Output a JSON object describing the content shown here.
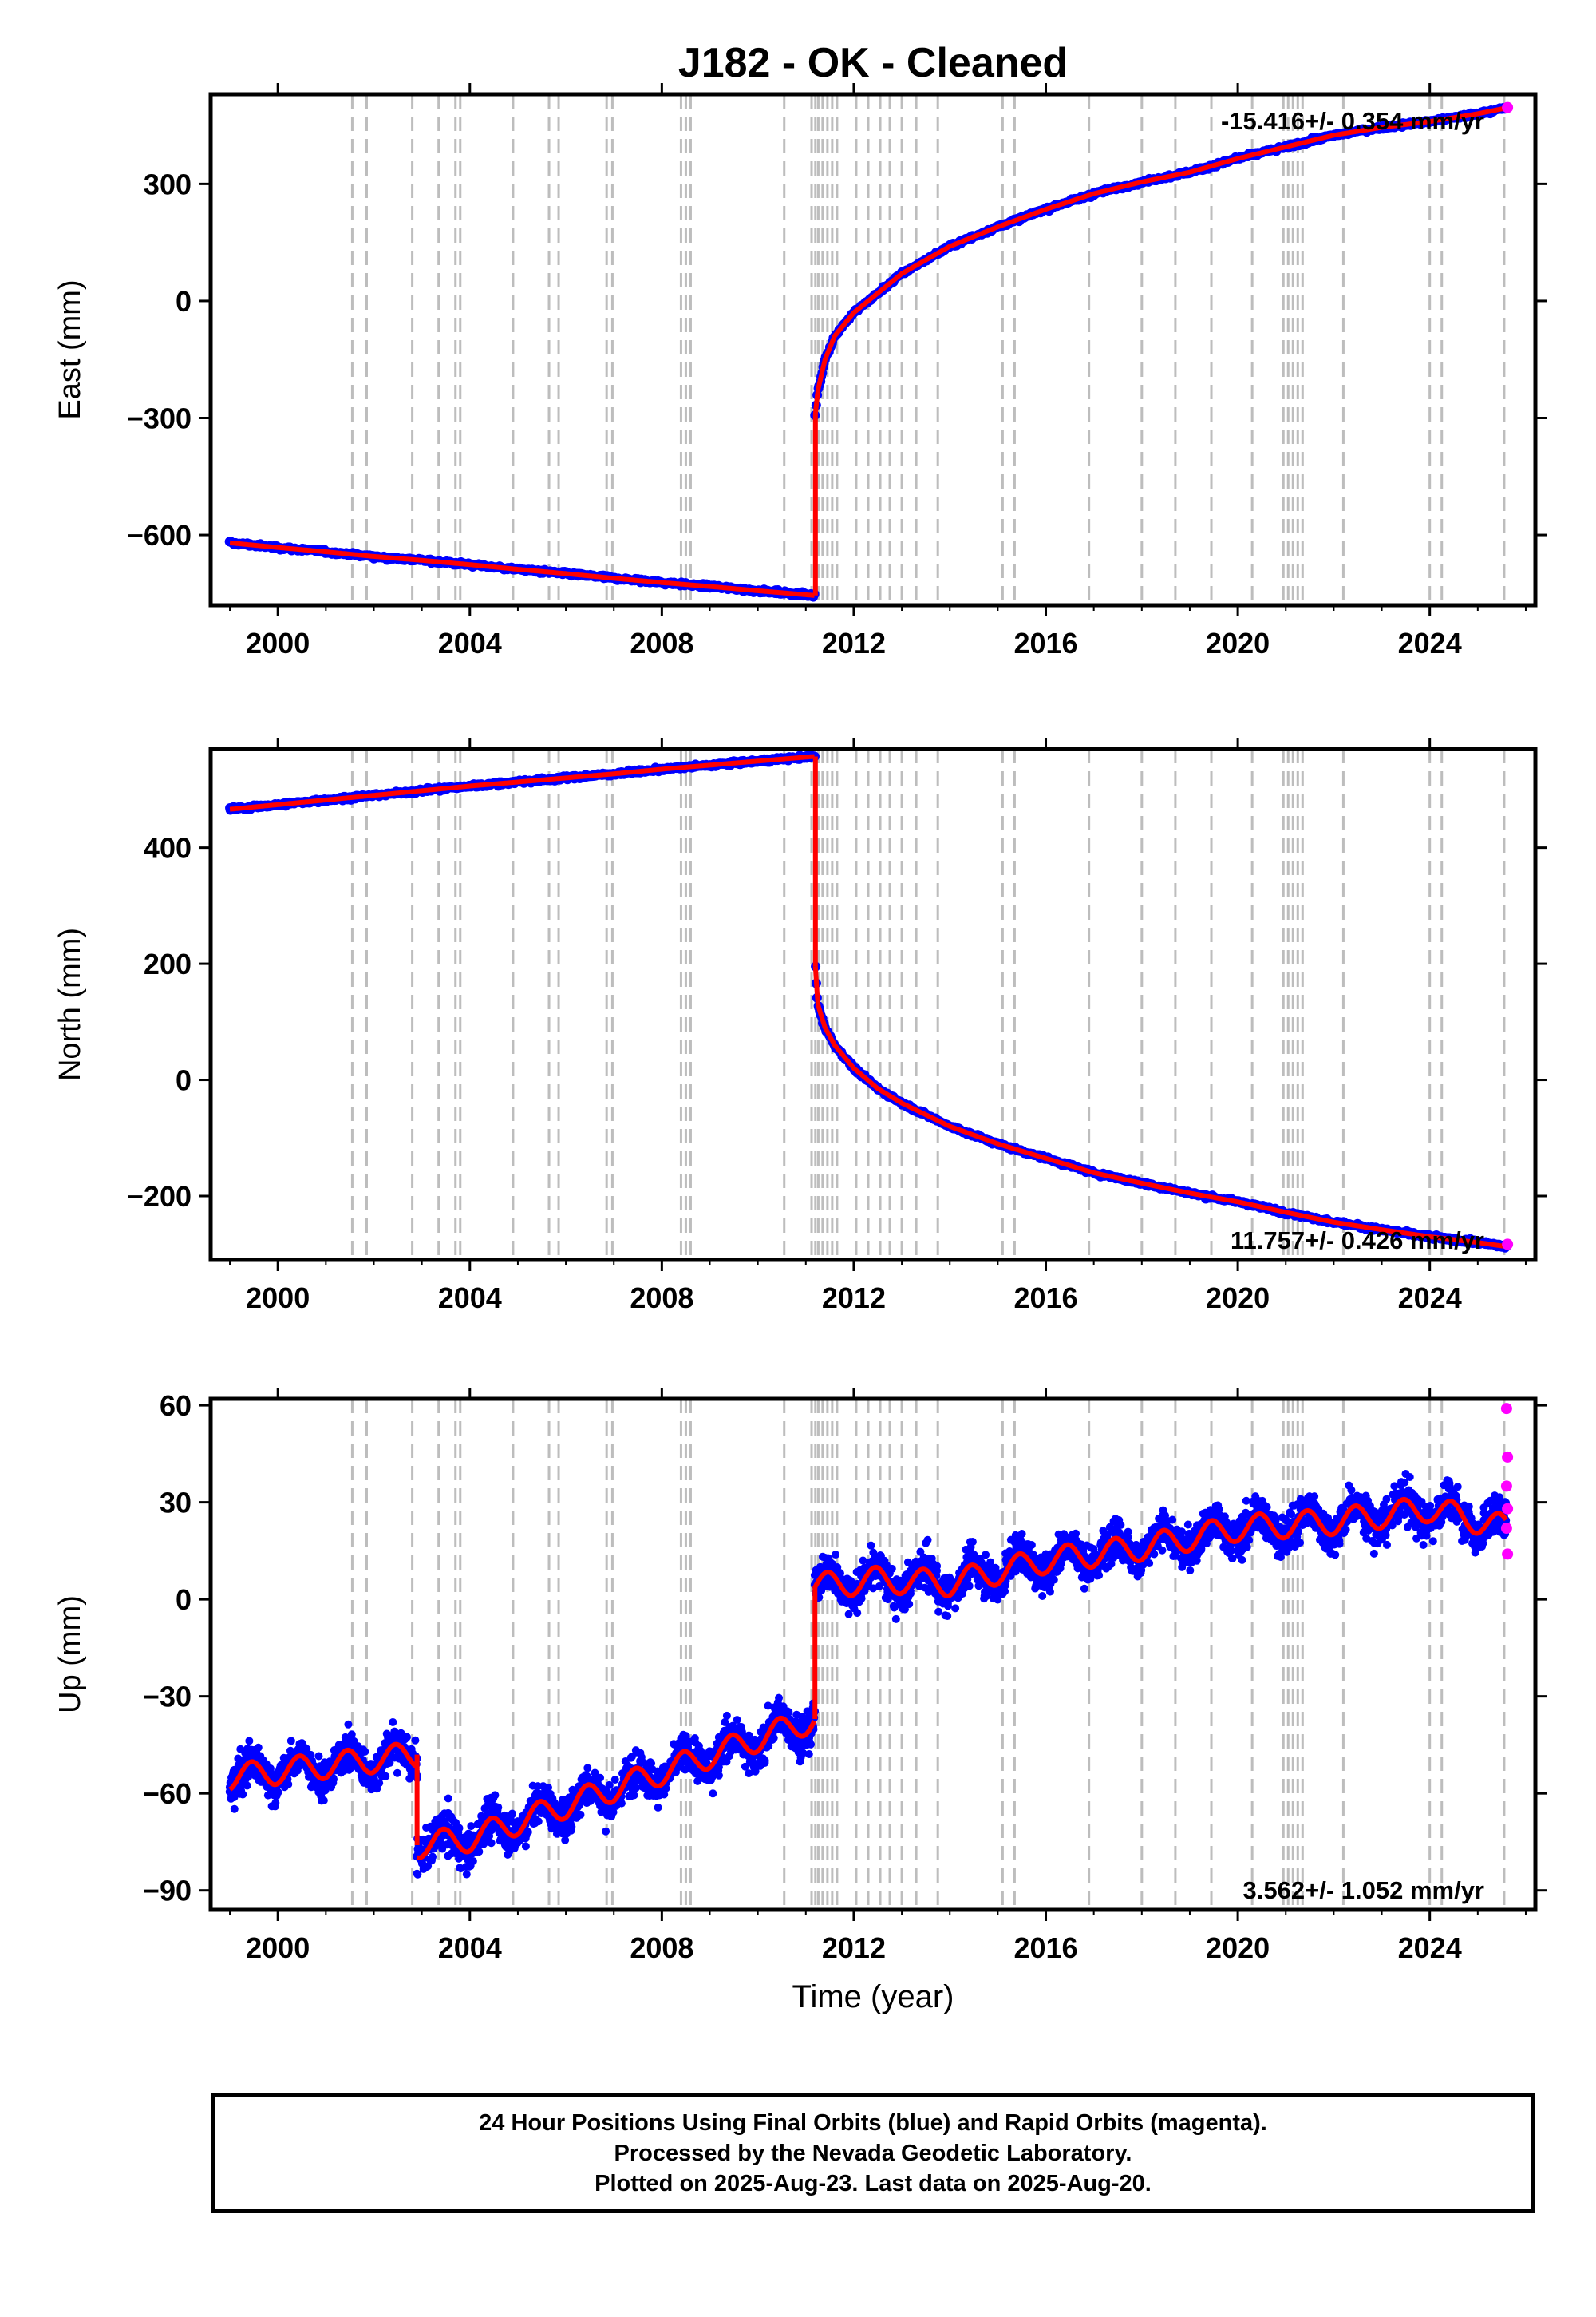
{
  "title": "J182  - OK - Cleaned",
  "xlabel": "Time (year)",
  "x_ticks": [
    2000,
    2004,
    2008,
    2012,
    2016,
    2020,
    2024
  ],
  "xlim": [
    1998.6,
    2026.2
  ],
  "colors": {
    "final_orbits": "#0000ff",
    "rapid_orbits": "#ff00ff",
    "model": "#ff0000",
    "event_lines": "#bdbdbd",
    "frame": "#000000"
  },
  "event_lines_years": [
    2001.55,
    2001.85,
    2002.8,
    2003.35,
    2003.7,
    2003.8,
    2004.9,
    2005.65,
    2005.85,
    2006.85,
    2006.97,
    2008.4,
    2008.5,
    2008.6,
    2010.55,
    2011.12,
    2011.2,
    2011.26,
    2011.35,
    2011.45,
    2011.55,
    2011.65,
    2012.05,
    2012.3,
    2012.55,
    2012.75,
    2013.0,
    2013.3,
    2013.75,
    2015.1,
    2015.35,
    2016.9,
    2018.0,
    2018.7,
    2019.45,
    2020.3,
    2020.95,
    2021.05,
    2021.15,
    2021.25,
    2021.35,
    2022.2,
    2024.0,
    2024.25,
    2025.55
  ],
  "footer": {
    "line1": "24 Hour Positions Using Final Orbits (blue) and Rapid Orbits (magenta).",
    "line2": "Processed by the Nevada Geodetic Laboratory.",
    "line3": "Plotted on 2025-Aug-23. Last data on 2025-Aug-20."
  },
  "chart_data": [
    {
      "type": "scatter",
      "component": "East",
      "ylabel": "East (mm)",
      "rate_label": "-15.416+/- 0.354 mm/yr",
      "rate_position": "top-right",
      "ylim": [
        -780,
        530
      ],
      "y_ticks": [
        -600,
        -300,
        0,
        300
      ],
      "offset_year": 2011.19,
      "series": [
        {
          "segment": "pre-offset",
          "x": [
            1999.0,
            2000.0,
            2001.0,
            2002.0,
            2003.0,
            2004.0,
            2005.0,
            2006.0,
            2007.0,
            2008.0,
            2009.0,
            2010.0,
            2011.18
          ],
          "y": [
            -620,
            -632,
            -643,
            -655,
            -665,
            -676,
            -688,
            -699,
            -711,
            -722,
            -732,
            -743,
            -755
          ]
        },
        {
          "segment": "post-offset",
          "x": [
            2011.2,
            2011.25,
            2011.4,
            2011.6,
            2012.0,
            2012.5,
            2013.0,
            2014.0,
            2015.0,
            2016.0,
            2017.0,
            2018.0,
            2019.0,
            2020.0,
            2021.0,
            2022.0,
            2023.0,
            2024.0,
            2025.0,
            2025.6
          ],
          "y": [
            -290,
            -230,
            -150,
            -90,
            -30,
            20,
            70,
            140,
            190,
            235,
            275,
            305,
            330,
            365,
            395,
            425,
            445,
            460,
            480,
            495
          ]
        }
      ],
      "rapid_orbits": {
        "x": [
          2025.62
        ],
        "y": [
          496
        ]
      }
    },
    {
      "type": "scatter",
      "component": "North",
      "ylabel": "North (mm)",
      "rate_label": "11.757+/- 0.426 mm/yr",
      "rate_position": "bottom-right",
      "ylim": [
        -310,
        570
      ],
      "y_ticks": [
        -200,
        0,
        200,
        400
      ],
      "offset_year": 2011.19,
      "series": [
        {
          "segment": "pre-offset",
          "x": [
            1999.0,
            2000.0,
            2001.0,
            2002.0,
            2003.0,
            2004.0,
            2005.0,
            2006.0,
            2007.0,
            2008.0,
            2009.0,
            2010.0,
            2011.18
          ],
          "y": [
            466,
            474,
            482,
            490,
            498,
            506,
            513,
            520,
            527,
            535,
            542,
            549,
            557
          ]
        },
        {
          "segment": "post-offset",
          "x": [
            2011.2,
            2011.25,
            2011.4,
            2011.6,
            2012.0,
            2012.5,
            2013.0,
            2014.0,
            2015.0,
            2016.0,
            2017.0,
            2018.0,
            2019.0,
            2020.0,
            2021.0,
            2022.0,
            2023.0,
            2024.0,
            2025.0,
            2025.6
          ],
          "y": [
            195,
            130,
            90,
            60,
            20,
            -15,
            -40,
            -80,
            -110,
            -135,
            -160,
            -178,
            -195,
            -210,
            -228,
            -245,
            -258,
            -270,
            -280,
            -287
          ]
        }
      ],
      "rapid_orbits": {
        "x": [
          2025.62
        ],
        "y": [
          -283
        ]
      }
    },
    {
      "type": "scatter",
      "component": "Up",
      "ylabel": "Up (mm)",
      "rate_label": "3.562+/- 1.052 mm/yr",
      "rate_position": "bottom-right",
      "ylim": [
        -96,
        62
      ],
      "y_ticks": [
        -90,
        -60,
        -30,
        0,
        30,
        60
      ],
      "offset_years": [
        2002.9,
        2011.19
      ],
      "seasonal_amplitude_mm": 4,
      "point_scatter_mm": 7,
      "series": [
        {
          "segment": "1999-2002.9",
          "x": [
            1999.0,
            2002.9
          ],
          "y": [
            -55,
            -48
          ]
        },
        {
          "segment": "2002.9-2011.19",
          "x": [
            2002.9,
            2004.0,
            2011.19
          ],
          "y": [
            -76,
            -74,
            -37
          ]
        },
        {
          "segment": "2011.19-2025.6",
          "x": [
            2011.19,
            2012.5,
            2014.0,
            2016.0,
            2018.0,
            2020.0,
            2022.0,
            2024.0,
            2025.6
          ],
          "y": [
            4,
            6,
            5,
            12,
            16,
            22,
            24,
            28,
            22
          ]
        }
      ],
      "rapid_orbits": {
        "x": [
          2025.6,
          2025.62,
          2025.6,
          2025.62,
          2025.6,
          2025.62
        ],
        "y": [
          59,
          44,
          35,
          28,
          22,
          14
        ]
      }
    }
  ]
}
